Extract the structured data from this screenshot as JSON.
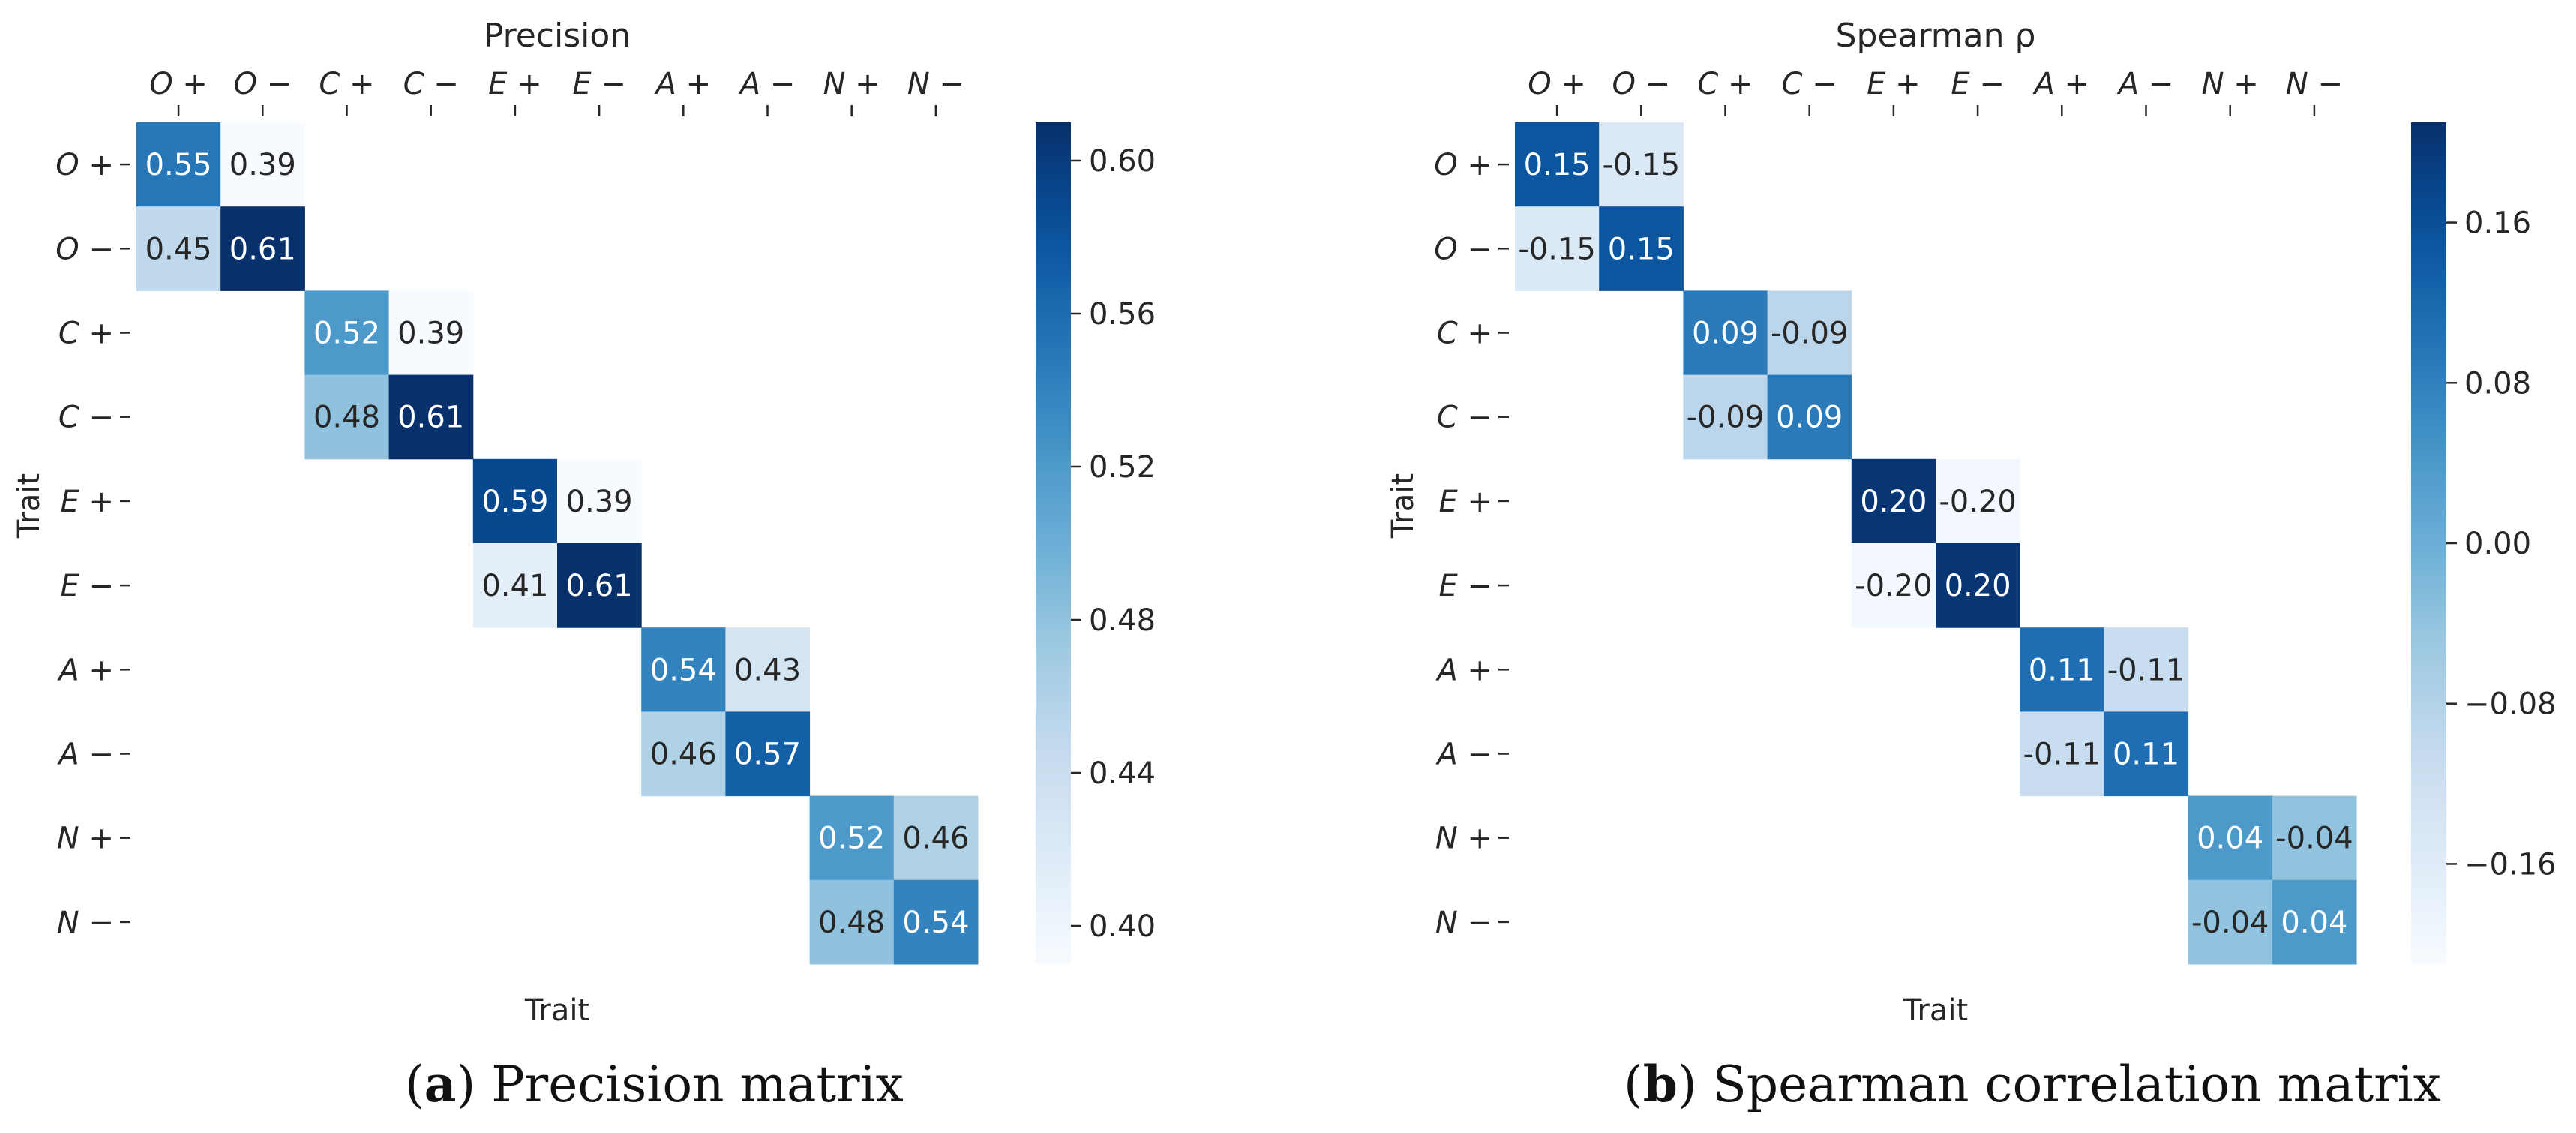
{
  "chart_data": [
    {
      "type": "heatmap",
      "title": "Precision",
      "xlabel": "Trait",
      "ylabel": "Trait",
      "rows": [
        "O +",
        "O −",
        "C +",
        "C −",
        "E +",
        "E −",
        "A +",
        "A −",
        "N +",
        "N −"
      ],
      "cols": [
        "O +",
        "O −",
        "C +",
        "C −",
        "E +",
        "E −",
        "A +",
        "A −",
        "N +",
        "N −"
      ],
      "cells": [
        {
          "r": 0,
          "c": 0,
          "value": 0.55,
          "label": "0.55"
        },
        {
          "r": 0,
          "c": 1,
          "value": 0.39,
          "label": "0.39"
        },
        {
          "r": 1,
          "c": 0,
          "value": 0.45,
          "label": "0.45"
        },
        {
          "r": 1,
          "c": 1,
          "value": 0.61,
          "label": "0.61"
        },
        {
          "r": 2,
          "c": 2,
          "value": 0.52,
          "label": "0.52"
        },
        {
          "r": 2,
          "c": 3,
          "value": 0.39,
          "label": "0.39"
        },
        {
          "r": 3,
          "c": 2,
          "value": 0.48,
          "label": "0.48"
        },
        {
          "r": 3,
          "c": 3,
          "value": 0.61,
          "label": "0.61"
        },
        {
          "r": 4,
          "c": 4,
          "value": 0.59,
          "label": "0.59"
        },
        {
          "r": 4,
          "c": 5,
          "value": 0.39,
          "label": "0.39"
        },
        {
          "r": 5,
          "c": 4,
          "value": 0.41,
          "label": "0.41"
        },
        {
          "r": 5,
          "c": 5,
          "value": 0.61,
          "label": "0.61"
        },
        {
          "r": 6,
          "c": 6,
          "value": 0.54,
          "label": "0.54"
        },
        {
          "r": 6,
          "c": 7,
          "value": 0.43,
          "label": "0.43"
        },
        {
          "r": 7,
          "c": 6,
          "value": 0.46,
          "label": "0.46"
        },
        {
          "r": 7,
          "c": 7,
          "value": 0.57,
          "label": "0.57"
        },
        {
          "r": 8,
          "c": 8,
          "value": 0.52,
          "label": "0.52"
        },
        {
          "r": 8,
          "c": 9,
          "value": 0.46,
          "label": "0.46"
        },
        {
          "r": 9,
          "c": 8,
          "value": 0.48,
          "label": "0.48"
        },
        {
          "r": 9,
          "c": 9,
          "value": 0.54,
          "label": "0.54"
        }
      ],
      "colorbar": {
        "range": [
          0.39,
          0.61
        ],
        "ticks": [
          0.4,
          0.44,
          0.48,
          0.52,
          0.56,
          0.6
        ],
        "tick_labels": [
          "0.40",
          "0.44",
          "0.48",
          "0.52",
          "0.56",
          "0.60"
        ]
      },
      "colormap": "Blues"
    },
    {
      "type": "heatmap",
      "title": "Spearman ρ",
      "xlabel": "Trait",
      "ylabel": "Trait",
      "rows": [
        "O +",
        "O −",
        "C +",
        "C −",
        "E +",
        "E −",
        "A +",
        "A −",
        "N +",
        "N −"
      ],
      "cols": [
        "O +",
        "O −",
        "C +",
        "C −",
        "E +",
        "E −",
        "A +",
        "A −",
        "N +",
        "N −"
      ],
      "cells": [
        {
          "r": 0,
          "c": 0,
          "value": 0.15,
          "label": "0.15"
        },
        {
          "r": 0,
          "c": 1,
          "value": -0.15,
          "label": "-0.15"
        },
        {
          "r": 1,
          "c": 0,
          "value": -0.15,
          "label": "-0.15"
        },
        {
          "r": 1,
          "c": 1,
          "value": 0.15,
          "label": "0.15"
        },
        {
          "r": 2,
          "c": 2,
          "value": 0.09,
          "label": "0.09"
        },
        {
          "r": 2,
          "c": 3,
          "value": -0.09,
          "label": "-0.09"
        },
        {
          "r": 3,
          "c": 2,
          "value": -0.09,
          "label": "-0.09"
        },
        {
          "r": 3,
          "c": 3,
          "value": 0.09,
          "label": "0.09"
        },
        {
          "r": 4,
          "c": 4,
          "value": 0.2,
          "label": "0.20"
        },
        {
          "r": 4,
          "c": 5,
          "value": -0.2,
          "label": "-0.20"
        },
        {
          "r": 5,
          "c": 4,
          "value": -0.2,
          "label": "-0.20"
        },
        {
          "r": 5,
          "c": 5,
          "value": 0.2,
          "label": "0.20"
        },
        {
          "r": 6,
          "c": 6,
          "value": 0.11,
          "label": "0.11"
        },
        {
          "r": 6,
          "c": 7,
          "value": -0.11,
          "label": "-0.11"
        },
        {
          "r": 7,
          "c": 6,
          "value": -0.11,
          "label": "-0.11"
        },
        {
          "r": 7,
          "c": 7,
          "value": 0.11,
          "label": "0.11"
        },
        {
          "r": 8,
          "c": 8,
          "value": 0.04,
          "label": "0.04"
        },
        {
          "r": 8,
          "c": 9,
          "value": -0.04,
          "label": "-0.04"
        },
        {
          "r": 9,
          "c": 8,
          "value": -0.04,
          "label": "-0.04"
        },
        {
          "r": 9,
          "c": 9,
          "value": 0.04,
          "label": "0.04"
        }
      ],
      "colorbar": {
        "range": [
          -0.21,
          0.21
        ],
        "ticks": [
          -0.16,
          -0.08,
          0.0,
          0.08,
          0.16
        ],
        "tick_labels": [
          "−0.16",
          "−0.08",
          "0.00",
          "0.08",
          "0.16"
        ]
      },
      "colormap": "Blues"
    }
  ],
  "captions": {
    "a": {
      "letter": "a",
      "text": "Precision matrix"
    },
    "b": {
      "letter": "b",
      "text": "Spearman correlation matrix"
    }
  }
}
